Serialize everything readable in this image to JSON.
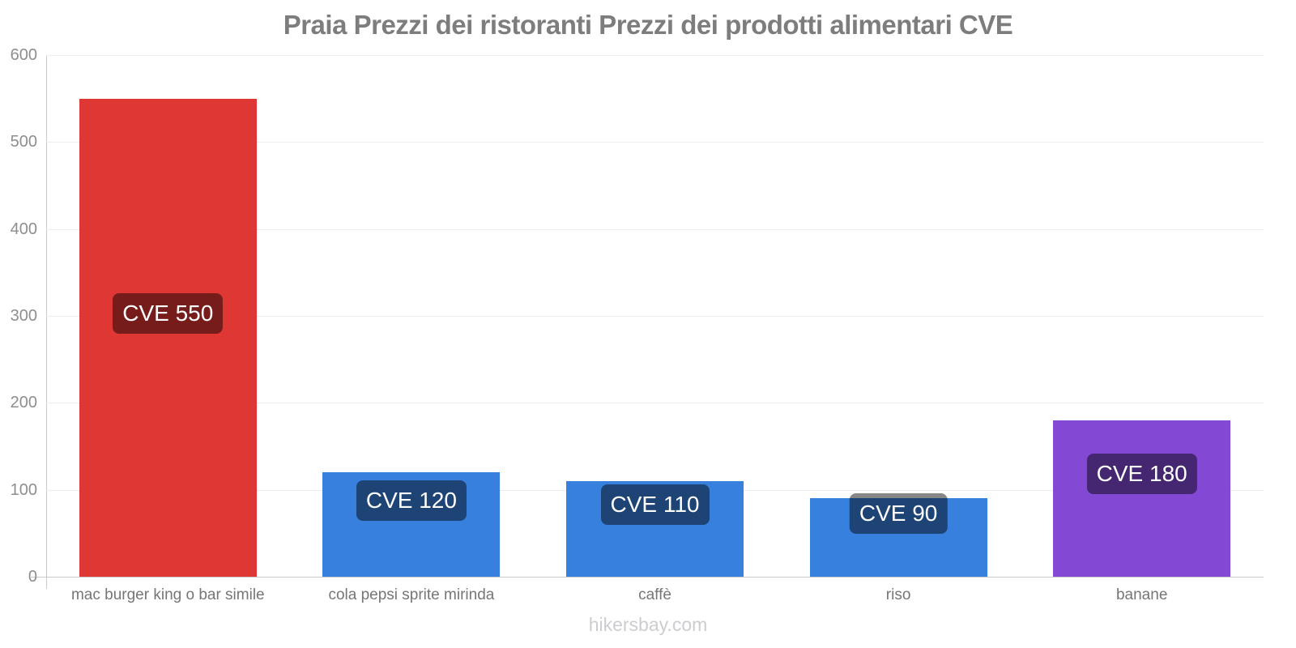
{
  "title": "Praia Prezzi dei ristoranti Prezzi dei prodotti alimentari CVE",
  "footer": "hikersbay.com",
  "colors": {
    "red_bar": "#df3734",
    "blue_bar": "#3780dd",
    "purple_bar": "#8349d4",
    "badge_overlay": "rgba(0,0,0,0.47)",
    "title_text": "#7d7d7d",
    "axis_text": "#8e8e8e",
    "grid_line": "#ededed",
    "axis_line": "#c9c9c9",
    "watermark_text": "#cdcdd1"
  },
  "chart_data": {
    "type": "bar",
    "title": "Praia Prezzi dei ristoranti Prezzi dei prodotti alimentari CVE",
    "currency": "CVE",
    "categories": [
      "mac burger king o bar simile",
      "cola pepsi sprite mirinda",
      "caffè",
      "riso",
      "banane"
    ],
    "values": [
      550,
      120,
      110,
      90,
      180
    ],
    "value_labels": [
      "CVE 550",
      "CVE 120",
      "CVE 110",
      "CVE 90",
      "CVE 180"
    ],
    "bar_colors": [
      "#df3734",
      "#3780dd",
      "#3780dd",
      "#3780dd",
      "#8349d4"
    ],
    "xlabel": "",
    "ylabel": "",
    "ylim": [
      0,
      600
    ],
    "yticks": [
      0,
      100,
      200,
      300,
      400,
      500,
      600
    ],
    "grid": true,
    "legend": false
  }
}
